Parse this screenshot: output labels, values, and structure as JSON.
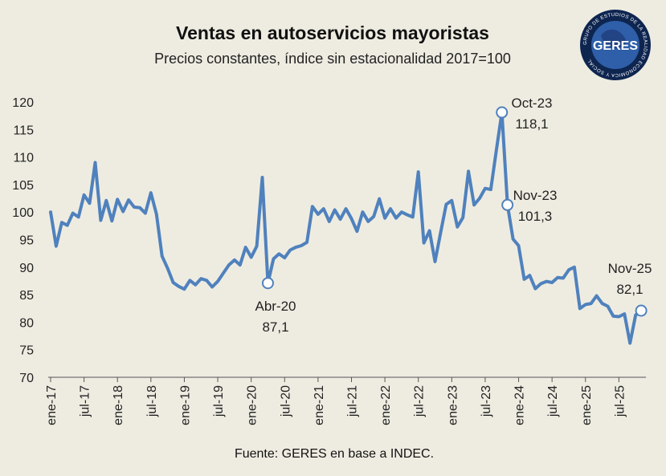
{
  "chart_data": {
    "type": "line",
    "title": "Ventas en autoservicios mayoristas",
    "subtitle": "Precios constantes, índice sin estacionalidad 2017=100",
    "source": "Fuente: GERES en base a INDEC.",
    "ylim": [
      70,
      120
    ],
    "yticks": [
      120,
      115,
      110,
      105,
      100,
      95,
      90,
      85,
      80,
      75,
      70
    ],
    "grid": false,
    "x_tick_labels": [
      "ene-17",
      "jul-17",
      "ene-18",
      "jul-18",
      "ene-19",
      "jul-19",
      "ene-20",
      "jul-20",
      "ene-21",
      "jul-21",
      "ene-22",
      "jul-22",
      "ene-23",
      "jul-23",
      "ene-24",
      "jul-24",
      "ene-25",
      "jul-25"
    ],
    "x_tick_months": [
      0,
      6,
      12,
      18,
      24,
      30,
      36,
      42,
      48,
      54,
      60,
      66,
      72,
      78,
      84,
      90,
      96,
      102
    ],
    "x_start": "ene-17",
    "x_end": "nov-25",
    "line_color": "#4F81BD",
    "series": [
      {
        "values": [
          100.0,
          93.8,
          98.1,
          97.6,
          99.8,
          99.1,
          103.1,
          101.6,
          109.0,
          98.5,
          102.1,
          98.4,
          102.3,
          100.1,
          102.2,
          100.9,
          100.8,
          99.8,
          103.5,
          99.6,
          92.0,
          89.8,
          87.2,
          86.5,
          86.0,
          87.6,
          86.8,
          87.9,
          87.6,
          86.4,
          87.4,
          88.9,
          90.4,
          91.3,
          90.4,
          93.6,
          91.8,
          93.8,
          106.3,
          87.1,
          91.5,
          92.4,
          91.7,
          93.1,
          93.6,
          93.9,
          94.5,
          101.0,
          99.6,
          100.6,
          98.3,
          100.4,
          98.7,
          100.6,
          98.8,
          96.5,
          100.0,
          98.3,
          99.2,
          102.4,
          98.9,
          100.6,
          98.9,
          100.0,
          99.5,
          99.1,
          107.3,
          94.4,
          96.6,
          91.0,
          96.3,
          101.4,
          102.1,
          97.3,
          99.0,
          107.4,
          101.3,
          102.5,
          104.3,
          104.1,
          111.2,
          118.1,
          101.3,
          95.1,
          93.9,
          87.8,
          88.5,
          86.1,
          87.0,
          87.4,
          87.2,
          88.1,
          88.0,
          89.5,
          90.0,
          82.5,
          83.2,
          83.4,
          84.8,
          83.4,
          82.9,
          81.1,
          81.0,
          81.5,
          76.2,
          81.3,
          82.1
        ]
      }
    ],
    "annotations": [
      {
        "label": "Oct-23",
        "value": "118,1",
        "month": 81
      },
      {
        "label": "Nov-23",
        "value": "101,3",
        "month": 82
      },
      {
        "label": "Abr-20",
        "value": "87,1",
        "month": 39
      },
      {
        "label": "Nov-25",
        "value": "82,1",
        "month": 106
      }
    ]
  },
  "logo": {
    "text": "GERES",
    "ring_text": "GRUPO DE ESTUDIOS DE LA REALIDAD ECONÓMICA Y SOCIAL",
    "colors": {
      "outer": "#1F3C7A",
      "inner": "#2E5FA8",
      "ring": "#0E2550"
    }
  }
}
